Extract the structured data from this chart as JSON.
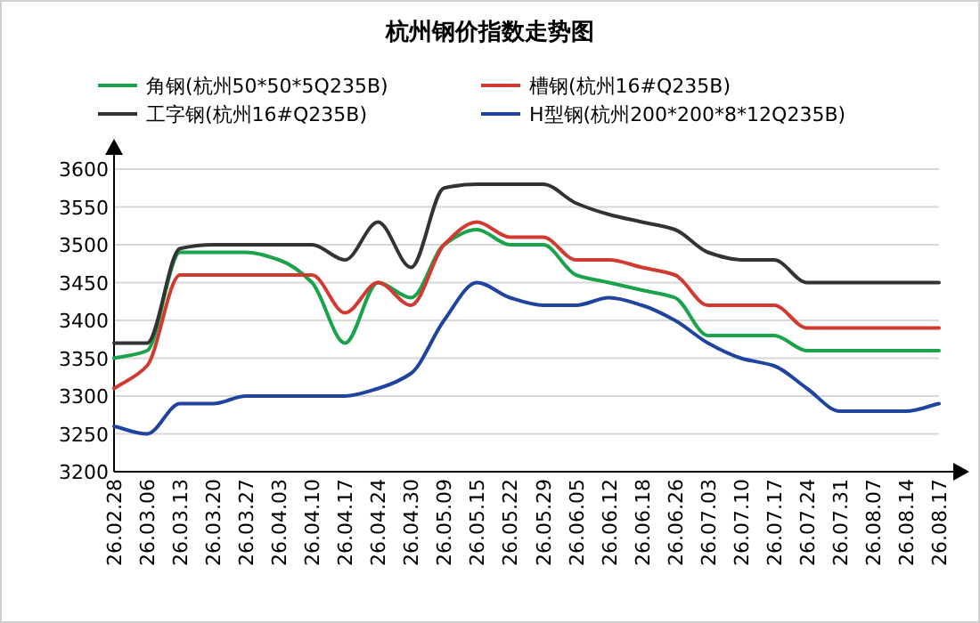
{
  "chart_data": {
    "type": "line",
    "title": "杭州钢价指数走势图",
    "categories": [
      "26.02.28",
      "26.03.06",
      "26.03.13",
      "26.03.20",
      "26.03.27",
      "26.04.03",
      "26.04.10",
      "26.04.17",
      "26.04.24",
      "26.04.30",
      "26.05.09",
      "26.05.15",
      "26.05.22",
      "26.05.29",
      "26.06.05",
      "26.06.12",
      "26.06.18",
      "26.06.26",
      "26.07.03",
      "26.07.10",
      "26.07.17",
      "26.07.24",
      "26.07.31",
      "26.08.07",
      "26.08.14",
      "26.08.17"
    ],
    "series": [
      {
        "name": "角钢(杭州50*50*5Q235B)",
        "color": "#1aa34a",
        "values": [
          3350,
          3360,
          3490,
          3490,
          3490,
          3480,
          3450,
          3370,
          3450,
          3430,
          3500,
          3520,
          3500,
          3500,
          3460,
          3450,
          3440,
          3430,
          3380,
          3380,
          3380,
          3360,
          3360,
          3360,
          3360,
          3360
        ]
      },
      {
        "name": "槽钢(杭州16#Q235B)",
        "color": "#d03a30",
        "values": [
          3310,
          3340,
          3460,
          3460,
          3460,
          3460,
          3460,
          3410,
          3450,
          3420,
          3500,
          3530,
          3510,
          3510,
          3480,
          3480,
          3470,
          3460,
          3420,
          3420,
          3420,
          3390,
          3390,
          3390,
          3390,
          3390
        ]
      },
      {
        "name": "工字钢(杭州16#Q235B)",
        "color": "#333333",
        "values": [
          3370,
          3370,
          3495,
          3500,
          3500,
          3500,
          3500,
          3480,
          3530,
          3470,
          3575,
          3580,
          3580,
          3580,
          3555,
          3540,
          3530,
          3520,
          3490,
          3480,
          3480,
          3450,
          3450,
          3450,
          3450,
          3450
        ]
      },
      {
        "name": "H型钢(杭州200*200*8*12Q235B)",
        "color": "#1f44a0",
        "values": [
          3260,
          3250,
          3290,
          3290,
          3300,
          3300,
          3300,
          3300,
          3310,
          3330,
          3400,
          3450,
          3430,
          3420,
          3420,
          3430,
          3420,
          3400,
          3370,
          3350,
          3340,
          3310,
          3280,
          3280,
          3280,
          3290
        ]
      }
    ],
    "ylim": [
      3200,
      3600
    ],
    "yticks": [
      3200,
      3250,
      3300,
      3350,
      3400,
      3450,
      3500,
      3550,
      3600
    ],
    "grid": "y",
    "legend": "top"
  }
}
